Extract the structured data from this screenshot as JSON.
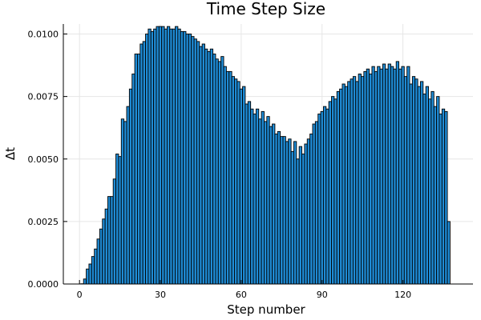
{
  "chart_data": {
    "type": "bar",
    "title": "Time Step Size",
    "xlabel": "Step number",
    "ylabel": "Δt",
    "xlim": [
      -6,
      146
    ],
    "ylim": [
      0,
      0.0104
    ],
    "xticks": [
      0,
      30,
      60,
      90,
      120
    ],
    "xtick_labels": [
      "0",
      "30",
      "60",
      "90",
      "120"
    ],
    "yticks": [
      0,
      0.0025,
      0.005,
      0.0075,
      0.01
    ],
    "ytick_labels": [
      "0.0000",
      "0.0025",
      "0.0050",
      "0.0075",
      "0.0100"
    ],
    "grid": true,
    "legend": "none",
    "bar_color": "#1f8cd6",
    "x": [
      1,
      2,
      3,
      4,
      5,
      6,
      7,
      8,
      9,
      10,
      11,
      12,
      13,
      14,
      15,
      16,
      17,
      18,
      19,
      20,
      21,
      22,
      23,
      24,
      25,
      26,
      27,
      28,
      29,
      30,
      31,
      32,
      33,
      34,
      35,
      36,
      37,
      38,
      39,
      40,
      41,
      42,
      43,
      44,
      45,
      46,
      47,
      48,
      49,
      50,
      51,
      52,
      53,
      54,
      55,
      56,
      57,
      58,
      59,
      60,
      61,
      62,
      63,
      64,
      65,
      66,
      67,
      68,
      69,
      70,
      71,
      72,
      73,
      74,
      75,
      76,
      77,
      78,
      79,
      80,
      81,
      82,
      83,
      84,
      85,
      86,
      87,
      88,
      89,
      90,
      91,
      92,
      93,
      94,
      95,
      96,
      97,
      98,
      99,
      100,
      101,
      102,
      103,
      104,
      105,
      106,
      107,
      108,
      109,
      110,
      111,
      112,
      113,
      114,
      115,
      116,
      117,
      118,
      119,
      120,
      121,
      122,
      123,
      124,
      125,
      126,
      127,
      128,
      129,
      130,
      131,
      132,
      133,
      134,
      135,
      136,
      137
    ],
    "values": [
      1e-05,
      0.0002,
      0.0006,
      0.0008,
      0.0011,
      0.0014,
      0.0018,
      0.0022,
      0.0026,
      0.003,
      0.0035,
      0.0035,
      0.0042,
      0.0052,
      0.0051,
      0.0066,
      0.0065,
      0.0071,
      0.0078,
      0.0084,
      0.0092,
      0.0092,
      0.0096,
      0.0097,
      0.01,
      0.0102,
      0.0101,
      0.0102,
      0.0103,
      0.0103,
      0.0103,
      0.0102,
      0.0103,
      0.0102,
      0.0102,
      0.0103,
      0.0102,
      0.0101,
      0.0101,
      0.01,
      0.01,
      0.0099,
      0.0098,
      0.0097,
      0.0095,
      0.0096,
      0.0094,
      0.0093,
      0.0094,
      0.0092,
      0.009,
      0.0089,
      0.0091,
      0.0087,
      0.0085,
      0.0085,
      0.0083,
      0.0082,
      0.0081,
      0.0078,
      0.0079,
      0.0072,
      0.0073,
      0.007,
      0.0068,
      0.007,
      0.0066,
      0.0069,
      0.0065,
      0.0067,
      0.0063,
      0.0064,
      0.006,
      0.0061,
      0.0059,
      0.0059,
      0.0057,
      0.0058,
      0.0053,
      0.0057,
      0.005,
      0.0055,
      0.0052,
      0.0056,
      0.0058,
      0.006,
      0.0064,
      0.0065,
      0.0068,
      0.0069,
      0.0071,
      0.007,
      0.0073,
      0.0075,
      0.0074,
      0.0077,
      0.0078,
      0.008,
      0.0079,
      0.0081,
      0.0082,
      0.0083,
      0.0081,
      0.0084,
      0.0083,
      0.0085,
      0.0086,
      0.0084,
      0.0087,
      0.0085,
      0.0087,
      0.0086,
      0.0088,
      0.0086,
      0.0088,
      0.0087,
      0.0086,
      0.0089,
      0.0086,
      0.0087,
      0.0083,
      0.0087,
      0.008,
      0.0083,
      0.0082,
      0.0079,
      0.0081,
      0.0076,
      0.0079,
      0.0074,
      0.0077,
      0.0071,
      0.0075,
      0.0068,
      0.007,
      0.0069,
      0.0025
    ]
  }
}
